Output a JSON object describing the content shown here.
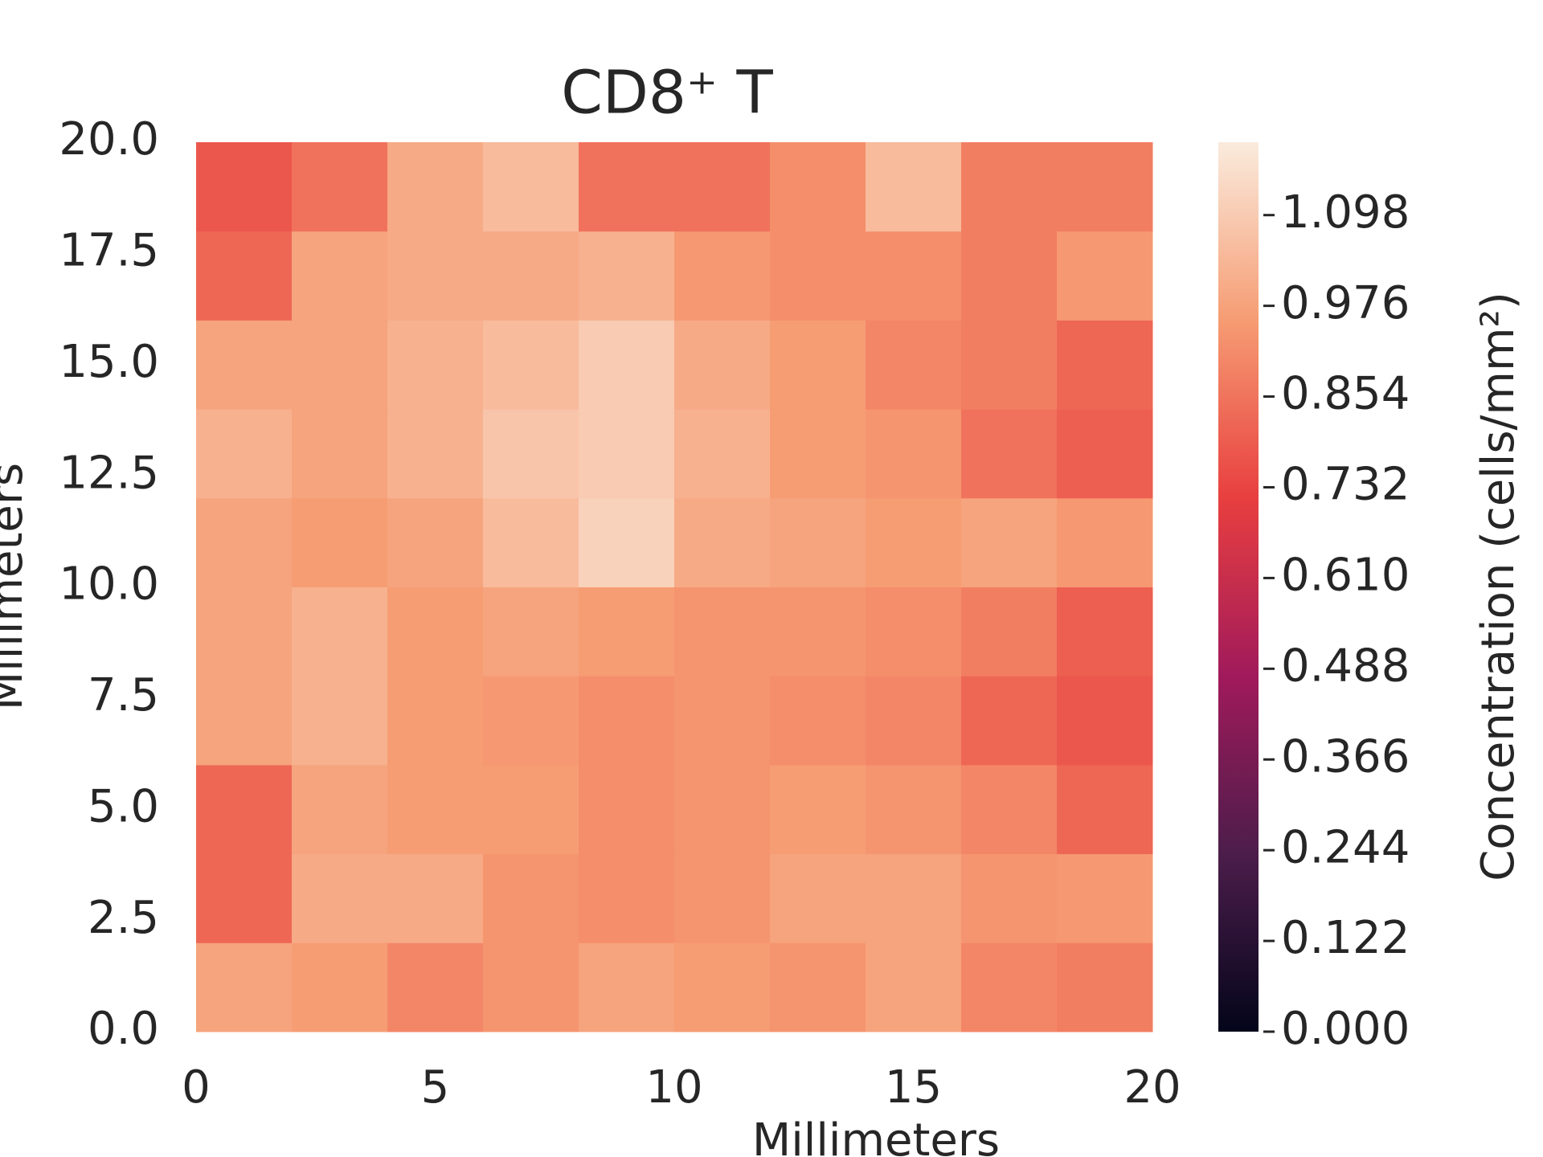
{
  "chart_data": {
    "type": "heatmap",
    "title": "CD8⁺ T",
    "x_label": "Millimeters",
    "y_label": "Millimeters",
    "colorbar_label": "Concentration (cells/mm²)",
    "colormap": "rocket",
    "xlim": [
      0,
      20
    ],
    "ylim": [
      0,
      20
    ],
    "xticks": [
      0,
      5,
      10,
      15,
      20
    ],
    "yticks": [
      {
        "value": 0,
        "label": "0.0"
      },
      2.5,
      {
        "value": 5,
        "label": "5.0"
      },
      7.5,
      {
        "value": 10,
        "label": "10.0"
      },
      12.5,
      {
        "value": 15,
        "label": "15.0"
      },
      17.5,
      {
        "value": 20,
        "label": "20.0"
      }
    ],
    "clim": [
      0,
      1.196
    ],
    "cticks": [
      {
        "value": 0,
        "label": "0.000"
      },
      0.122,
      0.244,
      0.366,
      0.488,
      {
        "value": 0.61,
        "label": "0.610"
      },
      0.732,
      0.854,
      0.976,
      1.098
    ],
    "z": [
      [
        0.98,
        0.96,
        0.9,
        0.94,
        0.98,
        0.96,
        0.94,
        0.98,
        0.9,
        0.88
      ],
      [
        0.82,
        1.0,
        1.0,
        0.94,
        0.92,
        0.94,
        0.98,
        0.98,
        0.94,
        0.95
      ],
      [
        0.82,
        0.98,
        0.96,
        0.96,
        0.92,
        0.94,
        0.96,
        0.94,
        0.9,
        0.82
      ],
      [
        0.98,
        1.02,
        0.96,
        0.95,
        0.92,
        0.94,
        0.92,
        0.9,
        0.82,
        0.78
      ],
      [
        0.98,
        1.02,
        0.96,
        0.98,
        0.96,
        0.94,
        0.94,
        0.92,
        0.88,
        0.8
      ],
      [
        0.98,
        0.96,
        0.98,
        1.05,
        1.12,
        1.0,
        0.98,
        0.96,
        0.98,
        0.95
      ],
      [
        1.02,
        0.98,
        1.02,
        1.08,
        1.1,
        1.02,
        0.96,
        0.94,
        0.85,
        0.8
      ],
      [
        0.98,
        0.98,
        1.02,
        1.05,
        1.1,
        1.0,
        0.96,
        0.9,
        0.88,
        0.82
      ],
      [
        0.82,
        0.98,
        1.0,
        1.0,
        1.02,
        0.95,
        0.92,
        0.92,
        0.88,
        0.95
      ],
      [
        0.78,
        0.85,
        1.0,
        1.05,
        0.85,
        0.85,
        0.92,
        1.05,
        0.88,
        0.88
      ]
    ]
  }
}
